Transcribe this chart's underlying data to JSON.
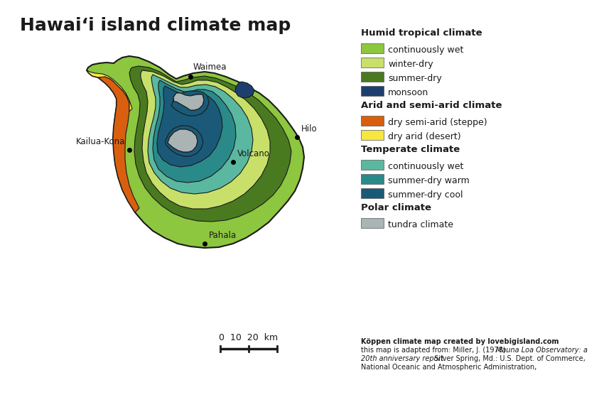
{
  "title": "Hawaiʻi island climate map",
  "background_color": "#ffffff",
  "legend_categories": [
    {
      "label": "Humid tropical climate",
      "color": null,
      "header": true
    },
    {
      "label": "continuously wet",
      "color": "#8dc63f"
    },
    {
      "label": "winter-dry",
      "color": "#c8e06a"
    },
    {
      "label": "summer-dry",
      "color": "#4a7a20"
    },
    {
      "label": "monsoon",
      "color": "#1e3f6e"
    },
    {
      "label": "Arid and semi-arid climate",
      "color": null,
      "header": true
    },
    {
      "label": "dry semi-arid (steppe)",
      "color": "#d95f0e"
    },
    {
      "label": "dry arid (desert)",
      "color": "#f5e642"
    },
    {
      "label": "Temperate climate",
      "color": null,
      "header": true
    },
    {
      "label": "continuously wet",
      "color": "#5ab8a0"
    },
    {
      "label": "summer-dry warm",
      "color": "#2a8a8a"
    },
    {
      "label": "summer-dry cool",
      "color": "#1a5a78"
    },
    {
      "label": "Polar climate",
      "color": null,
      "header": true
    },
    {
      "label": "tundra climate",
      "color": "#aab4b4"
    }
  ],
  "attribution_bold": "Köppen climate map created by lovebigisland.com",
  "attribution_normal": "this map is adapted from: Miller, J. (1978). ",
  "attribution_italic": "Mauna Loa Observatory: a\n20th anniversary report.",
  "attribution_normal2": " Silver Spring, Md.: U.S. Dept. of Commerce,\nNational Oceanic and Atmospheric Administration,",
  "scale_label": "0  10  20  km",
  "colors": {
    "c_wet_humid": "#8dc63f",
    "c_winter_dry": "#c8e06a",
    "c_summer_dry": "#4a7a20",
    "c_monsoon": "#1e3f6e",
    "c_orange": "#d95f0e",
    "c_yellow": "#f5e642",
    "c_teal_light": "#5ab8a0",
    "c_teal_mid": "#2a8a8a",
    "c_teal_dark": "#1a5a78",
    "c_gray": "#aab4b4",
    "c_outline": "#1a1a1a"
  }
}
